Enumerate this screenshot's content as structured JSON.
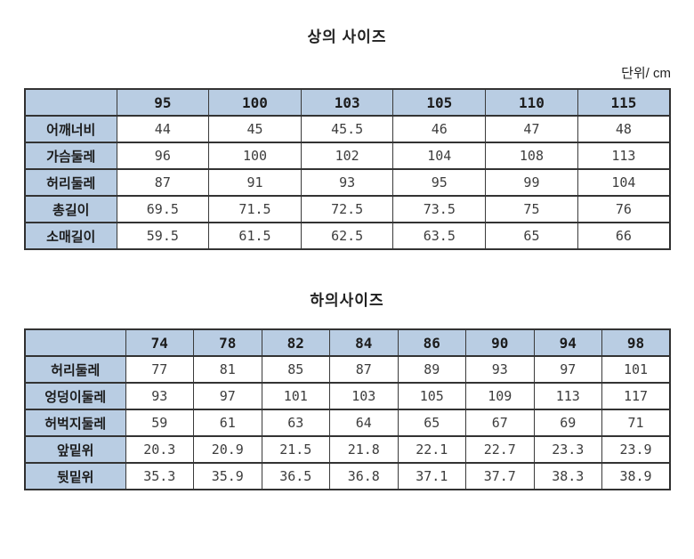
{
  "page": {
    "unit_label": "단위/ cm"
  },
  "colors": {
    "header_fill": "#b9cde3",
    "border": "#3a3a3a",
    "data_text": "#3d3d3d",
    "label_text": "#1c1c1c"
  },
  "tables": [
    {
      "title": "상의 사이즈",
      "columns": [
        "95",
        "100",
        "103",
        "105",
        "110",
        "115"
      ],
      "rows": [
        {
          "label": "어깨너비",
          "values": [
            "44",
            "45",
            "45.5",
            "46",
            "47",
            "48"
          ]
        },
        {
          "label": "가슴둘레",
          "values": [
            "96",
            "100",
            "102",
            "104",
            "108",
            "113"
          ]
        },
        {
          "label": "허리둘레",
          "values": [
            "87",
            "91",
            "93",
            "95",
            "99",
            "104"
          ]
        },
        {
          "label": "총길이",
          "values": [
            "69.5",
            "71.5",
            "72.5",
            "73.5",
            "75",
            "76"
          ]
        },
        {
          "label": "소매길이",
          "values": [
            "59.5",
            "61.5",
            "62.5",
            "63.5",
            "65",
            "66"
          ]
        }
      ]
    },
    {
      "title": "하의사이즈",
      "columns": [
        "74",
        "78",
        "82",
        "84",
        "86",
        "90",
        "94",
        "98"
      ],
      "rows": [
        {
          "label": "허리둘레",
          "values": [
            "77",
            "81",
            "85",
            "87",
            "89",
            "93",
            "97",
            "101"
          ]
        },
        {
          "label": "엉덩이둘레",
          "values": [
            "93",
            "97",
            "101",
            "103",
            "105",
            "109",
            "113",
            "117"
          ]
        },
        {
          "label": "허벅지둘레",
          "values": [
            "59",
            "61",
            "63",
            "64",
            "65",
            "67",
            "69",
            "71"
          ]
        },
        {
          "label": "앞밑위",
          "values": [
            "20.3",
            "20.9",
            "21.5",
            "21.8",
            "22.1",
            "22.7",
            "23.3",
            "23.9"
          ]
        },
        {
          "label": "뒷밑위",
          "values": [
            "35.3",
            "35.9",
            "36.5",
            "36.8",
            "37.1",
            "37.7",
            "38.3",
            "38.9"
          ]
        }
      ]
    }
  ]
}
